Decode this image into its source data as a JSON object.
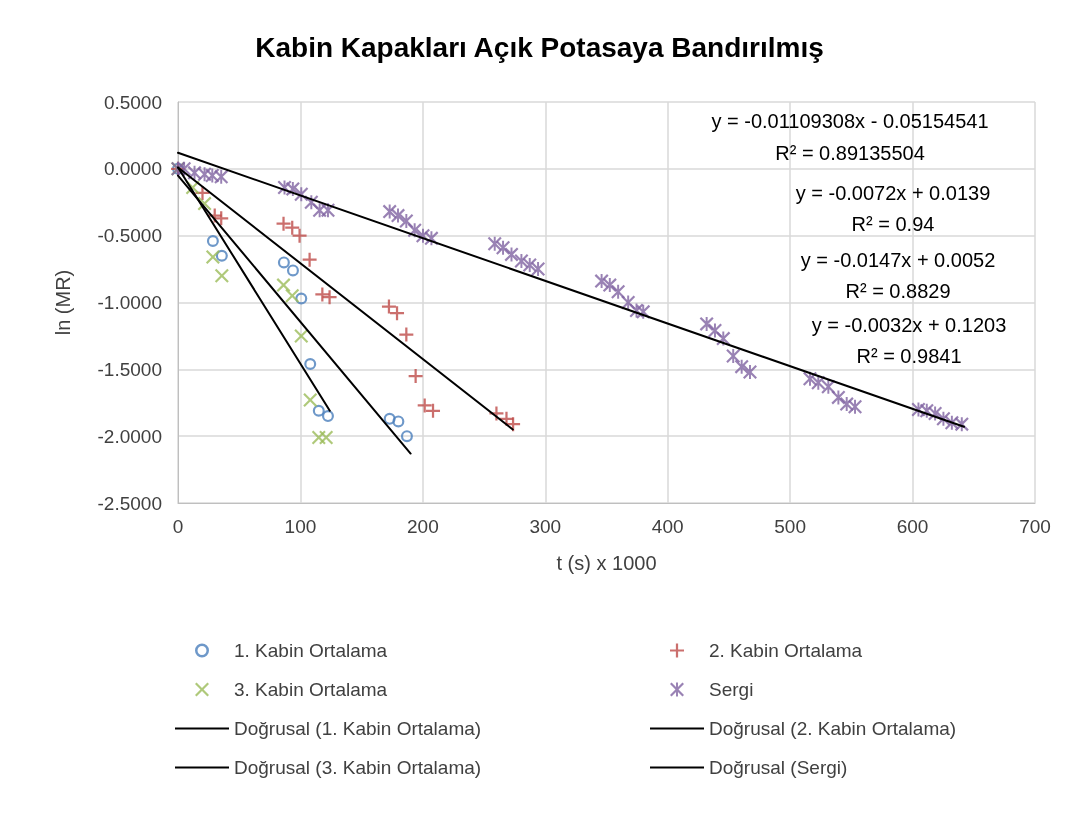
{
  "chart_data": {
    "type": "scatter",
    "title": "Kabin Kapakları Açık Potasaya Bandırılmış",
    "xlabel": "t (s) x 1000",
    "ylabel": "ln (MR)",
    "xlim": [
      0,
      700
    ],
    "xticks": [
      0,
      100,
      200,
      300,
      400,
      500,
      600,
      700
    ],
    "ylim": [
      -2.5,
      0.5
    ],
    "yticks": [
      {
        "value": 0.5,
        "label": "0.5000"
      },
      {
        "value": 0,
        "label": "0.0000"
      },
      {
        "value": -0.5,
        "label": "-0.5000"
      },
      {
        "value": -1,
        "label": "-1.0000"
      },
      {
        "value": -1.5,
        "label": "-1.5000"
      },
      {
        "value": -2,
        "label": "-2.0000"
      },
      {
        "value": -2.5,
        "label": "-2.5000"
      }
    ],
    "grid": true,
    "legend": "bottom",
    "annotations": [
      "y = -0.01109308x - 0.05154541",
      "R² = 0.89135504",
      "y = -0.0072x + 0.0139",
      "R² = 0.94",
      "y = -0.0147x + 0.0052",
      "R² = 0.8829",
      "y = -0.0032x + 0.1203",
      "R² = 0.9841"
    ],
    "series": [
      {
        "name": "1. Kabin Ortalama",
        "color": "#4a7ebb",
        "marker": "circle",
        "x": [
          0,
          23,
          28.5,
          35.8,
          86.5,
          93.9,
          100.7,
          108,
          115,
          122.5,
          172.9,
          180,
          187
        ],
        "values": [
          0,
          null,
          -0.54,
          -0.65,
          -0.7,
          -0.76,
          -0.97,
          -1.46,
          -1.81,
          -1.85,
          -1.87,
          -1.89,
          -2
        ]
      },
      {
        "name": "2. Kabin Ortalama",
        "color": "#be4b48",
        "marker": "cross",
        "x": [
          0,
          20,
          30,
          35.3,
          86.2,
          93.3,
          99.3,
          107.5,
          117.9,
          123.8,
          172.3,
          178.9,
          186.5,
          194.1,
          201.5,
          208.3,
          260.1,
          268.3,
          273.7
        ],
        "values": [
          0,
          -0.18,
          -0.35,
          -0.37,
          -0.41,
          -0.44,
          -0.5,
          -0.68,
          -0.94,
          -0.96,
          -1.03,
          -1.08,
          -1.24,
          -1.55,
          -1.77,
          -1.81,
          -1.83,
          -1.87,
          -1.91
        ]
      },
      {
        "name": "3. Kabin Ortalama",
        "color": "#9bbb59",
        "marker": "x",
        "x": [
          0,
          12,
          21.7,
          28.5,
          35.8,
          86.2,
          93.3,
          100.7,
          108,
          115,
          121
        ],
        "values": [
          0,
          -0.14,
          -0.26,
          -0.66,
          -0.8,
          -0.87,
          -0.95,
          -1.25,
          -1.73,
          -2.01,
          -2.01
        ]
      },
      {
        "name": "Sergi",
        "color": "#7f63a1",
        "marker": "star",
        "x": [
          0,
          5,
          13.5,
          21.7,
          28,
          35.3,
          87,
          93.8,
          100.7,
          108.9,
          115.7,
          122.5,
          172.9,
          179.7,
          186.5,
          193.3,
          200.1,
          207,
          258.7,
          265.5,
          272.4,
          280.5,
          287.3,
          294.1,
          346,
          352.7,
          359.5,
          367.7,
          374.5,
          380,
          431.8,
          438.6,
          445.4,
          453.5,
          460.4,
          467.2,
          516.2,
          523,
          531.2,
          539.4,
          546.2,
          553,
          604.8,
          611.6,
          618.4,
          625.2,
          632.1,
          640.2
        ],
        "values": [
          0,
          0,
          -0.03,
          -0.04,
          -0.05,
          -0.06,
          -0.14,
          -0.15,
          -0.19,
          -0.25,
          -0.31,
          -0.31,
          -0.32,
          -0.35,
          -0.39,
          -0.46,
          -0.5,
          -0.52,
          -0.56,
          -0.59,
          -0.64,
          -0.69,
          -0.72,
          -0.75,
          -0.84,
          -0.87,
          -0.92,
          -1,
          -1.06,
          -1.07,
          -1.16,
          -1.21,
          -1.27,
          -1.4,
          -1.48,
          -1.52,
          -1.57,
          -1.6,
          -1.63,
          -1.71,
          -1.76,
          -1.78,
          -1.8,
          -1.81,
          -1.83,
          -1.87,
          -1.9,
          -1.91
        ]
      },
      {
        "name": "Doğrusal (1. Kabin Ortalama)",
        "type": "line",
        "color": "#000000",
        "marker": "none",
        "x": [
          0,
          190
        ],
        "values": [
          -0.05,
          -2.13
        ]
      },
      {
        "name": "Doğrusal (2. Kabin Ortalama)",
        "type": "line",
        "color": "#000000",
        "marker": "none",
        "x": [
          0,
          273.5
        ],
        "values": [
          0.01,
          -1.95
        ]
      },
      {
        "name": "Doğrusal (3. Kabin Ortalama)",
        "type": "line",
        "color": "#000000",
        "marker": "none",
        "x": [
          0,
          124
        ],
        "values": [
          0.01,
          -1.81
        ]
      },
      {
        "name": "Doğrusal (Sergi)",
        "type": "line",
        "color": "#000000",
        "marker": "none",
        "x": [
          0,
          642
        ],
        "values": [
          0.12,
          -1.93
        ]
      }
    ]
  }
}
